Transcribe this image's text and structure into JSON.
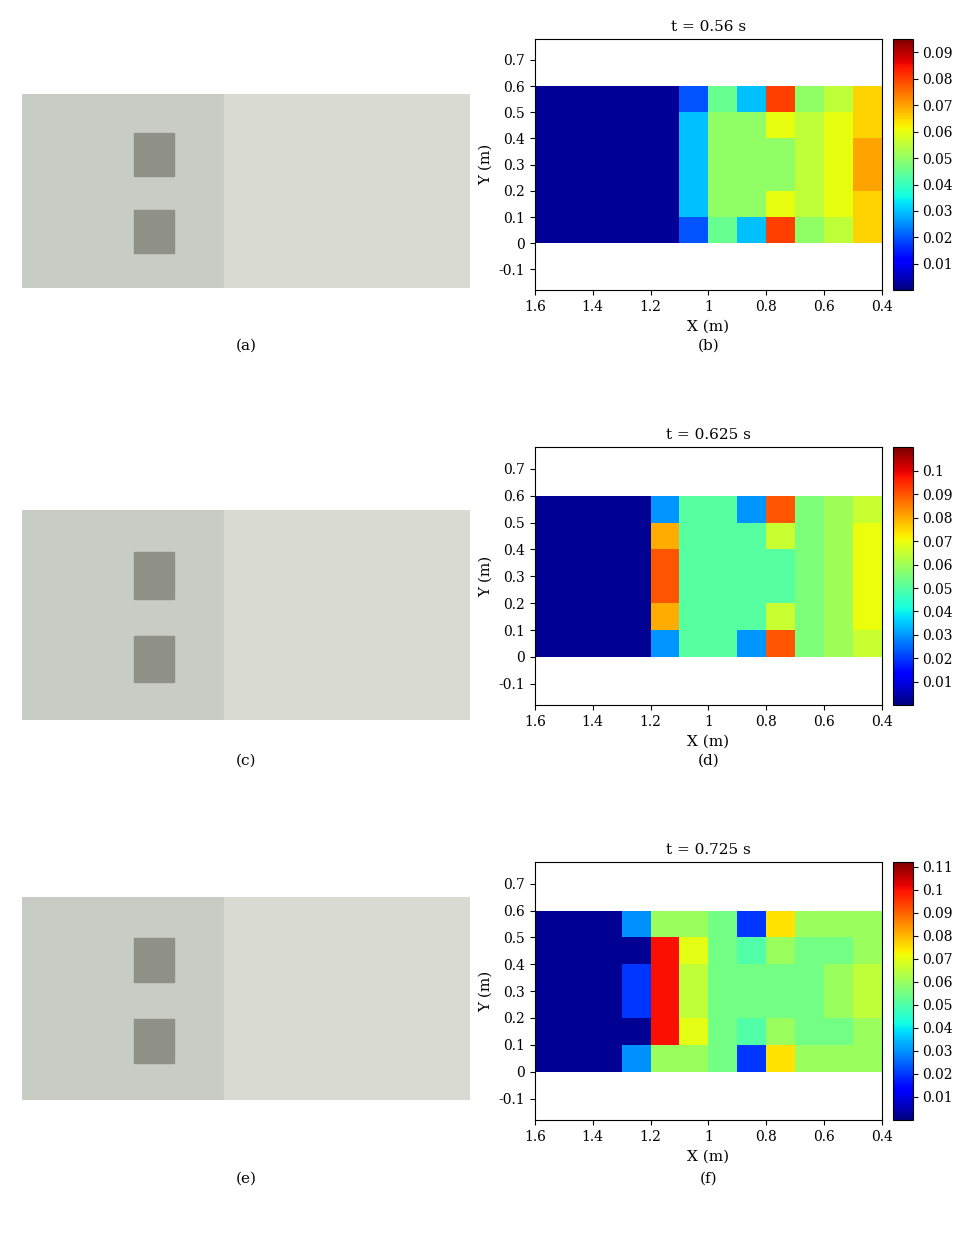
{
  "photos": [
    {
      "caption": "(a)"
    },
    {
      "caption": "(c)"
    },
    {
      "caption": "(e)"
    }
  ],
  "chart_data": [
    {
      "type": "heatmap",
      "title": "t = 0.56 s",
      "caption": "(b)",
      "x_label": "X (m)",
      "y_label": "Y (m)",
      "xlim": [
        1.6,
        0.4
      ],
      "xticks": [
        1.6,
        1.4,
        1.2,
        1,
        0.8,
        0.6,
        0.4
      ],
      "ylim": [
        -0.18,
        0.78
      ],
      "yticks": [
        -0.1,
        0,
        0.1,
        0.2,
        0.3,
        0.4,
        0.5,
        0.6,
        0.7
      ],
      "x_edges": [
        1.6,
        1.5,
        1.4,
        1.3,
        1.2,
        1.1,
        1.0,
        0.9,
        0.8,
        0.7,
        0.6,
        0.5,
        0.4
      ],
      "y_edges": [
        0,
        0.1,
        0.2,
        0.3,
        0.4,
        0.5,
        0.6
      ],
      "cells": [
        [
          0.002,
          0.002,
          0.002,
          0.002,
          0.002,
          0.02,
          0.045,
          0.03,
          0.08,
          0.05,
          0.055,
          0.065
        ],
        [
          0.002,
          0.002,
          0.002,
          0.002,
          0.002,
          0.03,
          0.05,
          0.05,
          0.06,
          0.055,
          0.06,
          0.065
        ],
        [
          0.002,
          0.002,
          0.002,
          0.002,
          0.002,
          0.03,
          0.05,
          0.05,
          0.05,
          0.055,
          0.06,
          0.07
        ],
        [
          0.002,
          0.002,
          0.002,
          0.002,
          0.002,
          0.03,
          0.05,
          0.05,
          0.05,
          0.055,
          0.06,
          0.07
        ],
        [
          0.002,
          0.002,
          0.002,
          0.002,
          0.002,
          0.03,
          0.05,
          0.05,
          0.06,
          0.055,
          0.06,
          0.065
        ],
        [
          0.002,
          0.002,
          0.002,
          0.002,
          0.002,
          0.02,
          0.045,
          0.03,
          0.08,
          0.05,
          0.055,
          0.065
        ]
      ],
      "clim": [
        0,
        0.095
      ],
      "cticks": [
        0.01,
        0.02,
        0.03,
        0.04,
        0.05,
        0.06,
        0.07,
        0.08,
        0.09
      ]
    },
    {
      "type": "heatmap",
      "title": "t = 0.625 s",
      "caption": "(d)",
      "x_label": "X (m)",
      "y_label": "Y (m)",
      "xlim": [
        1.6,
        0.4
      ],
      "xticks": [
        1.6,
        1.4,
        1.2,
        1,
        0.8,
        0.6,
        0.4
      ],
      "ylim": [
        -0.18,
        0.78
      ],
      "yticks": [
        -0.1,
        0,
        0.1,
        0.2,
        0.3,
        0.4,
        0.5,
        0.6,
        0.7
      ],
      "x_edges": [
        1.6,
        1.5,
        1.4,
        1.3,
        1.2,
        1.1,
        1.0,
        0.9,
        0.8,
        0.7,
        0.6,
        0.5,
        0.4
      ],
      "y_edges": [
        0,
        0.1,
        0.2,
        0.3,
        0.4,
        0.5,
        0.6
      ],
      "cells": [
        [
          0.002,
          0.002,
          0.002,
          0.002,
          0.03,
          0.05,
          0.05,
          0.03,
          0.09,
          0.055,
          0.06,
          0.065
        ],
        [
          0.002,
          0.002,
          0.002,
          0.002,
          0.08,
          0.05,
          0.05,
          0.05,
          0.065,
          0.055,
          0.06,
          0.07
        ],
        [
          0.002,
          0.002,
          0.002,
          0.002,
          0.09,
          0.05,
          0.05,
          0.05,
          0.05,
          0.055,
          0.06,
          0.07
        ],
        [
          0.002,
          0.002,
          0.002,
          0.002,
          0.09,
          0.05,
          0.05,
          0.05,
          0.05,
          0.055,
          0.06,
          0.07
        ],
        [
          0.002,
          0.002,
          0.002,
          0.002,
          0.08,
          0.05,
          0.05,
          0.05,
          0.065,
          0.055,
          0.06,
          0.07
        ],
        [
          0.002,
          0.002,
          0.002,
          0.002,
          0.03,
          0.05,
          0.05,
          0.03,
          0.09,
          0.055,
          0.06,
          0.065
        ]
      ],
      "clim": [
        0,
        0.11
      ],
      "cticks": [
        0.01,
        0.02,
        0.03,
        0.04,
        0.05,
        0.06,
        0.07,
        0.08,
        0.09,
        0.1
      ]
    },
    {
      "type": "heatmap",
      "title": "t = 0.725 s",
      "caption": "(f)",
      "x_label": "X (m)",
      "y_label": "Y (m)",
      "xlim": [
        1.6,
        0.4
      ],
      "xticks": [
        1.6,
        1.4,
        1.2,
        1,
        0.8,
        0.6,
        0.4
      ],
      "ylim": [
        -0.18,
        0.78
      ],
      "yticks": [
        -0.1,
        0,
        0.1,
        0.2,
        0.3,
        0.4,
        0.5,
        0.6,
        0.7
      ],
      "x_edges": [
        1.6,
        1.5,
        1.4,
        1.3,
        1.2,
        1.1,
        1.0,
        0.9,
        0.8,
        0.7,
        0.6,
        0.5,
        0.4
      ],
      "y_edges": [
        0,
        0.1,
        0.2,
        0.3,
        0.4,
        0.5,
        0.6
      ],
      "cells": [
        [
          0.002,
          0.002,
          0.002,
          0.03,
          0.06,
          0.06,
          0.055,
          0.02,
          0.075,
          0.06,
          0.06,
          0.06
        ],
        [
          0.002,
          0.002,
          0.002,
          0.002,
          0.1,
          0.07,
          0.055,
          0.05,
          0.06,
          0.055,
          0.055,
          0.06
        ],
        [
          0.002,
          0.002,
          0.002,
          0.02,
          0.1,
          0.065,
          0.055,
          0.055,
          0.055,
          0.055,
          0.06,
          0.065
        ],
        [
          0.002,
          0.002,
          0.002,
          0.02,
          0.1,
          0.065,
          0.055,
          0.055,
          0.055,
          0.055,
          0.06,
          0.065
        ],
        [
          0.002,
          0.002,
          0.002,
          0.002,
          0.1,
          0.07,
          0.055,
          0.05,
          0.06,
          0.055,
          0.055,
          0.06
        ],
        [
          0.002,
          0.002,
          0.002,
          0.03,
          0.06,
          0.06,
          0.055,
          0.02,
          0.075,
          0.06,
          0.06,
          0.06
        ]
      ],
      "clim": [
        0,
        0.112
      ],
      "cticks": [
        0.01,
        0.02,
        0.03,
        0.04,
        0.05,
        0.06,
        0.07,
        0.08,
        0.09,
        0.1,
        0.11
      ]
    }
  ]
}
